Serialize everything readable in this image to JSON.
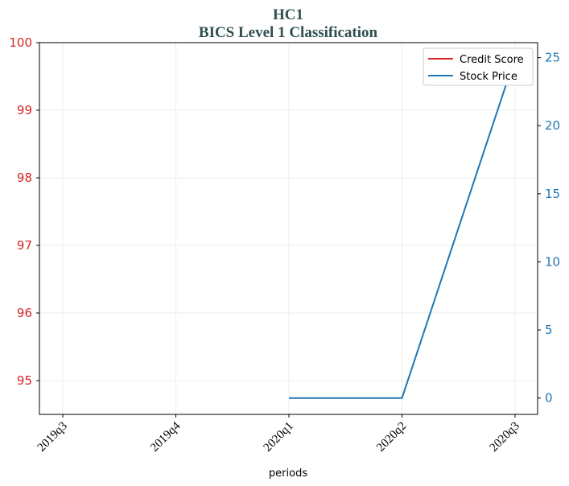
{
  "colors": {
    "credit": "#d62728",
    "stock": "#1f77b4",
    "title": "#2f4f4f",
    "grid": "#ececec"
  },
  "chart_data": {
    "type": "line",
    "title": "HC1",
    "subtitle": "BICS Level 1 Classification",
    "xlabel": "periods",
    "categories": [
      "2019q3",
      "2019q4",
      "2020q1",
      "2020q2",
      "2020q3"
    ],
    "y_left": {
      "ylim": [
        94.5,
        100
      ],
      "ticks": [
        95,
        96,
        97,
        98,
        99,
        100
      ]
    },
    "y_right": {
      "ylim": [
        -1.2,
        26.1
      ],
      "ticks": [
        0,
        5,
        10,
        15,
        20,
        25
      ]
    },
    "grid": true,
    "legend_placement": "top-right",
    "series": [
      {
        "name": "Credit Score",
        "axis": "left",
        "color": "#d62728",
        "values": [
          null,
          null,
          null,
          null,
          null
        ]
      },
      {
        "name": "Stock Price",
        "axis": "right",
        "color": "#1f77b4",
        "values": [
          null,
          null,
          0,
          0,
          25
        ]
      }
    ]
  }
}
